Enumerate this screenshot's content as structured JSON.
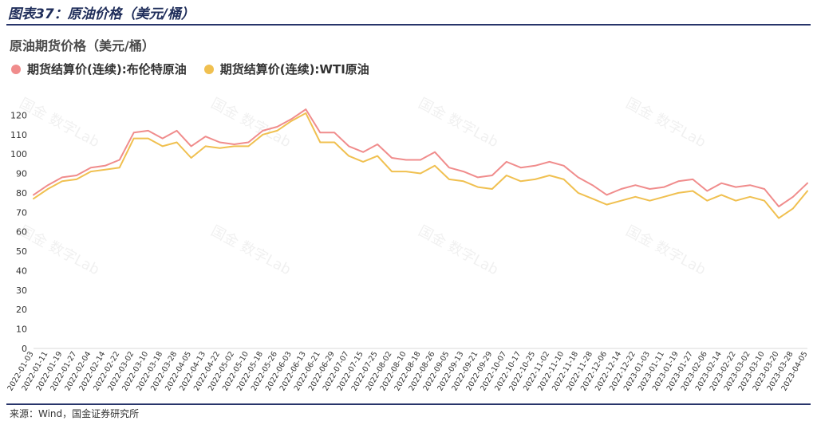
{
  "figure_title": "图表37：原油价格（美元/桶）",
  "source_note": "来源：Wind，国金证券研究所",
  "watermark": "国金 数字Lab",
  "colors": {
    "brent": "#f08c8c",
    "wti": "#f0c050",
    "axis_text": "#333333",
    "rule": "#27346a"
  },
  "chart_data": {
    "type": "line",
    "title": "原油期货价格（美元/桶）",
    "xlabel": "",
    "ylabel": "",
    "ylim": [
      0,
      130
    ],
    "yticks": [
      0,
      10,
      20,
      30,
      40,
      50,
      60,
      70,
      80,
      90,
      100,
      110,
      120
    ],
    "grid": false,
    "legend_position": "top-left",
    "x": [
      "2022-01-03",
      "2022-01-11",
      "2022-01-19",
      "2022-01-27",
      "2022-02-04",
      "2022-02-14",
      "2022-02-22",
      "2022-03-02",
      "2022-03-10",
      "2022-03-18",
      "2022-03-28",
      "2022-04-05",
      "2022-04-13",
      "2022-04-22",
      "2022-05-02",
      "2022-05-10",
      "2022-05-18",
      "2022-05-26",
      "2022-06-03",
      "2022-06-13",
      "2022-06-21",
      "2022-06-29",
      "2022-07-07",
      "2022-07-15",
      "2022-07-25",
      "2022-08-02",
      "2022-08-10",
      "2022-08-18",
      "2022-08-26",
      "2022-09-05",
      "2022-09-13",
      "2022-09-21",
      "2022-09-29",
      "2022-10-07",
      "2022-10-17",
      "2022-10-25",
      "2022-11-02",
      "2022-11-10",
      "2022-11-18",
      "2022-11-28",
      "2022-12-06",
      "2022-12-14",
      "2022-12-22",
      "2023-01-03",
      "2023-01-11",
      "2023-01-19",
      "2023-01-27",
      "2023-02-06",
      "2023-02-14",
      "2023-02-22",
      "2023-03-02",
      "2023-03-10",
      "2023-03-20",
      "2023-03-28",
      "2023-04-05"
    ],
    "series": [
      {
        "name": "期货结算价(连续):布伦特原油",
        "values": [
          79,
          84,
          88,
          89,
          93,
          94,
          97,
          111,
          112,
          108,
          112,
          104,
          109,
          106,
          105,
          106,
          112,
          114,
          118,
          123,
          111,
          111,
          104,
          101,
          105,
          98,
          97,
          97,
          101,
          93,
          91,
          88,
          89,
          96,
          93,
          94,
          96,
          94,
          88,
          84,
          79,
          82,
          84,
          82,
          83,
          86,
          87,
          81,
          85,
          83,
          84,
          82,
          73,
          78,
          85
        ]
      },
      {
        "name": "期货结算价(连续):WTI原油",
        "values": [
          77,
          82,
          86,
          87,
          91,
          92,
          93,
          108,
          108,
          104,
          106,
          98,
          104,
          103,
          104,
          104,
          110,
          112,
          117,
          121,
          106,
          106,
          99,
          96,
          99,
          91,
          91,
          90,
          94,
          87,
          86,
          83,
          82,
          89,
          86,
          87,
          89,
          87,
          80,
          77,
          74,
          76,
          78,
          76,
          78,
          80,
          81,
          76,
          79,
          76,
          78,
          76,
          67,
          72,
          81
        ]
      }
    ]
  }
}
